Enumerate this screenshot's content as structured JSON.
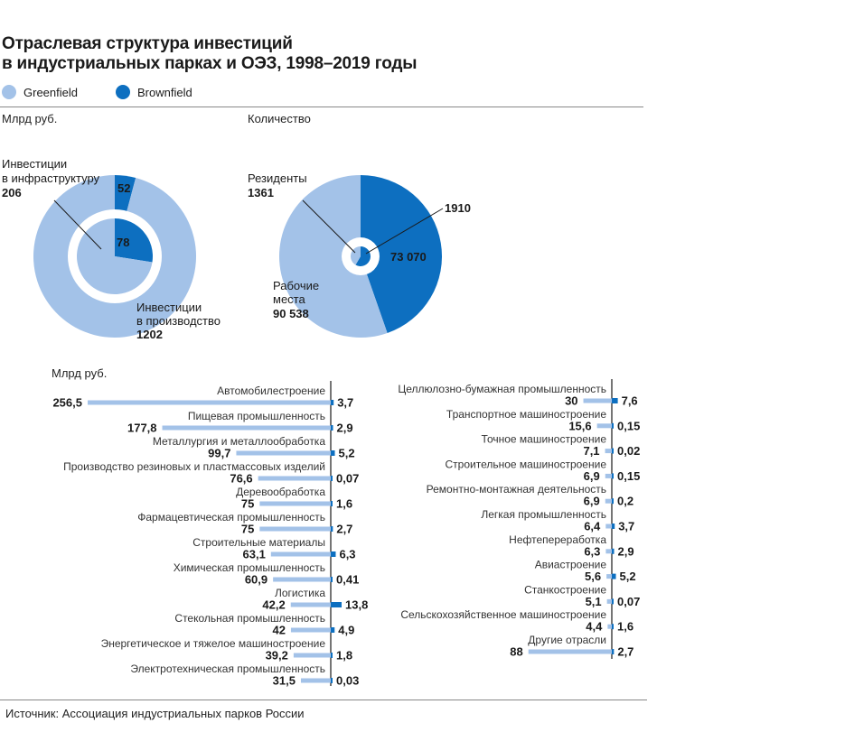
{
  "title_line1": "Отраслевая структура инвестиций",
  "title_line2": "в индустриальных парках и ОЭЗ, 1998–2019 годы",
  "legend": [
    {
      "label": "Greenfield",
      "color": "#a3c2e8"
    },
    {
      "label": "Brownfield",
      "color": "#0d6fc0"
    }
  ],
  "donut1_unit": "Млрд руб.",
  "donut2_unit": "Количество",
  "bars_unit": "Млрд руб.",
  "source": "Источник: Ассоциация индустриальных парков России",
  "chart_data": [
    {
      "type": "pie",
      "name": "investments",
      "rings": [
        {
          "ring": "outer",
          "label_lines": [
            "Инвестиции",
            "в производство"
          ],
          "greenfield": 1202,
          "brownfield": 52,
          "greenfield_label": "1202",
          "brownfield_label": "52"
        },
        {
          "ring": "inner",
          "label_lines": [
            "Инвестиции",
            "в инфраструктуру"
          ],
          "greenfield": 206,
          "brownfield": 78,
          "greenfield_label": "206",
          "brownfield_label": "78"
        }
      ]
    },
    {
      "type": "pie",
      "name": "counts",
      "rings": [
        {
          "ring": "outer",
          "label_lines": [
            "Рабочие",
            "места"
          ],
          "greenfield": 90538,
          "brownfield": 73070,
          "greenfield_label": "90 538",
          "brownfield_label": "73 070"
        },
        {
          "ring": "inner",
          "label_lines": [
            "Резиденты"
          ],
          "greenfield": 1361,
          "brownfield": 1910,
          "greenfield_label": "1361",
          "brownfield_label": "1910"
        }
      ]
    },
    {
      "type": "bar",
      "orientation": "diverging-horizontal",
      "rows": [
        {
          "category": "Автомобилестроение",
          "greenfield": 256.5,
          "g_label": "256,5",
          "brownfield": 3.7,
          "b_label": "3,7"
        },
        {
          "category": "Пищевая промышленность",
          "greenfield": 177.8,
          "g_label": "177,8",
          "brownfield": 2.9,
          "b_label": "2,9"
        },
        {
          "category": "Металлургия и металлообработка",
          "greenfield": 99.7,
          "g_label": "99,7",
          "brownfield": 5.2,
          "b_label": "5,2"
        },
        {
          "category": "Производство резиновых и пластмассовых изделий",
          "greenfield": 76.6,
          "g_label": "76,6",
          "brownfield": 0.07,
          "b_label": "0,07"
        },
        {
          "category": "Деревообработка",
          "greenfield": 75,
          "g_label": "75",
          "brownfield": 1.6,
          "b_label": "1,6"
        },
        {
          "category": "Фармацевтическая промышленность",
          "greenfield": 75,
          "g_label": "75",
          "brownfield": 2.7,
          "b_label": "2,7"
        },
        {
          "category": "Строительные материалы",
          "greenfield": 63.1,
          "g_label": "63,1",
          "brownfield": 6.3,
          "b_label": "6,3"
        },
        {
          "category": "Химическая промышленность",
          "greenfield": 60.9,
          "g_label": "60,9",
          "brownfield": 0.41,
          "b_label": "0,41"
        },
        {
          "category": "Логистика",
          "greenfield": 42.2,
          "g_label": "42,2",
          "brownfield": 13.8,
          "b_label": "13,8"
        },
        {
          "category": "Стекольная промышленность",
          "greenfield": 42,
          "g_label": "42",
          "brownfield": 4.9,
          "b_label": "4,9"
        },
        {
          "category": "Энергетическое и тяжелое машиностроение",
          "greenfield": 39.2,
          "g_label": "39,2",
          "brownfield": 1.8,
          "b_label": "1,8"
        },
        {
          "category": "Электротехническая промышленность",
          "greenfield": 31.5,
          "g_label": "31,5",
          "brownfield": 0.03,
          "b_label": "0,03"
        }
      ]
    },
    {
      "type": "bar",
      "orientation": "diverging-horizontal",
      "rows": [
        {
          "category": "Целлюлозно-бумажная промышленность",
          "greenfield": 30,
          "g_label": "30",
          "brownfield": 7.6,
          "b_label": "7,6"
        },
        {
          "category": "Транспортное машиностроение",
          "greenfield": 15.6,
          "g_label": "15,6",
          "brownfield": 0.15,
          "b_label": "0,15"
        },
        {
          "category": "Точное машиностроение",
          "greenfield": 7.1,
          "g_label": "7,1",
          "brownfield": 0.02,
          "b_label": "0,02"
        },
        {
          "category": "Строительное машиностроение",
          "greenfield": 6.9,
          "g_label": "6,9",
          "brownfield": 0.15,
          "b_label": "0,15"
        },
        {
          "category": "Ремонтно-монтажная деятельность",
          "greenfield": 6.9,
          "g_label": "6,9",
          "brownfield": 0.2,
          "b_label": "0,2"
        },
        {
          "category": "Легкая промышленность",
          "greenfield": 6.4,
          "g_label": "6,4",
          "brownfield": 3.7,
          "b_label": "3,7"
        },
        {
          "category": "Нефтепереработка",
          "greenfield": 6.3,
          "g_label": "6,3",
          "brownfield": 2.9,
          "b_label": "2,9"
        },
        {
          "category": "Авиастроение",
          "greenfield": 5.6,
          "g_label": "5,6",
          "brownfield": 5.2,
          "b_label": "5,2"
        },
        {
          "category": "Станкостроение",
          "greenfield": 5.1,
          "g_label": "5,1",
          "brownfield": 0.07,
          "b_label": "0,07"
        },
        {
          "category": "Сельскохозяйственное машиностроение",
          "greenfield": 4.4,
          "g_label": "4,4",
          "brownfield": 1.6,
          "b_label": "1,6"
        },
        {
          "category": "Другие отрасли",
          "greenfield": 88,
          "g_label": "88",
          "brownfield": 2.7,
          "b_label": "2,7"
        }
      ]
    }
  ]
}
